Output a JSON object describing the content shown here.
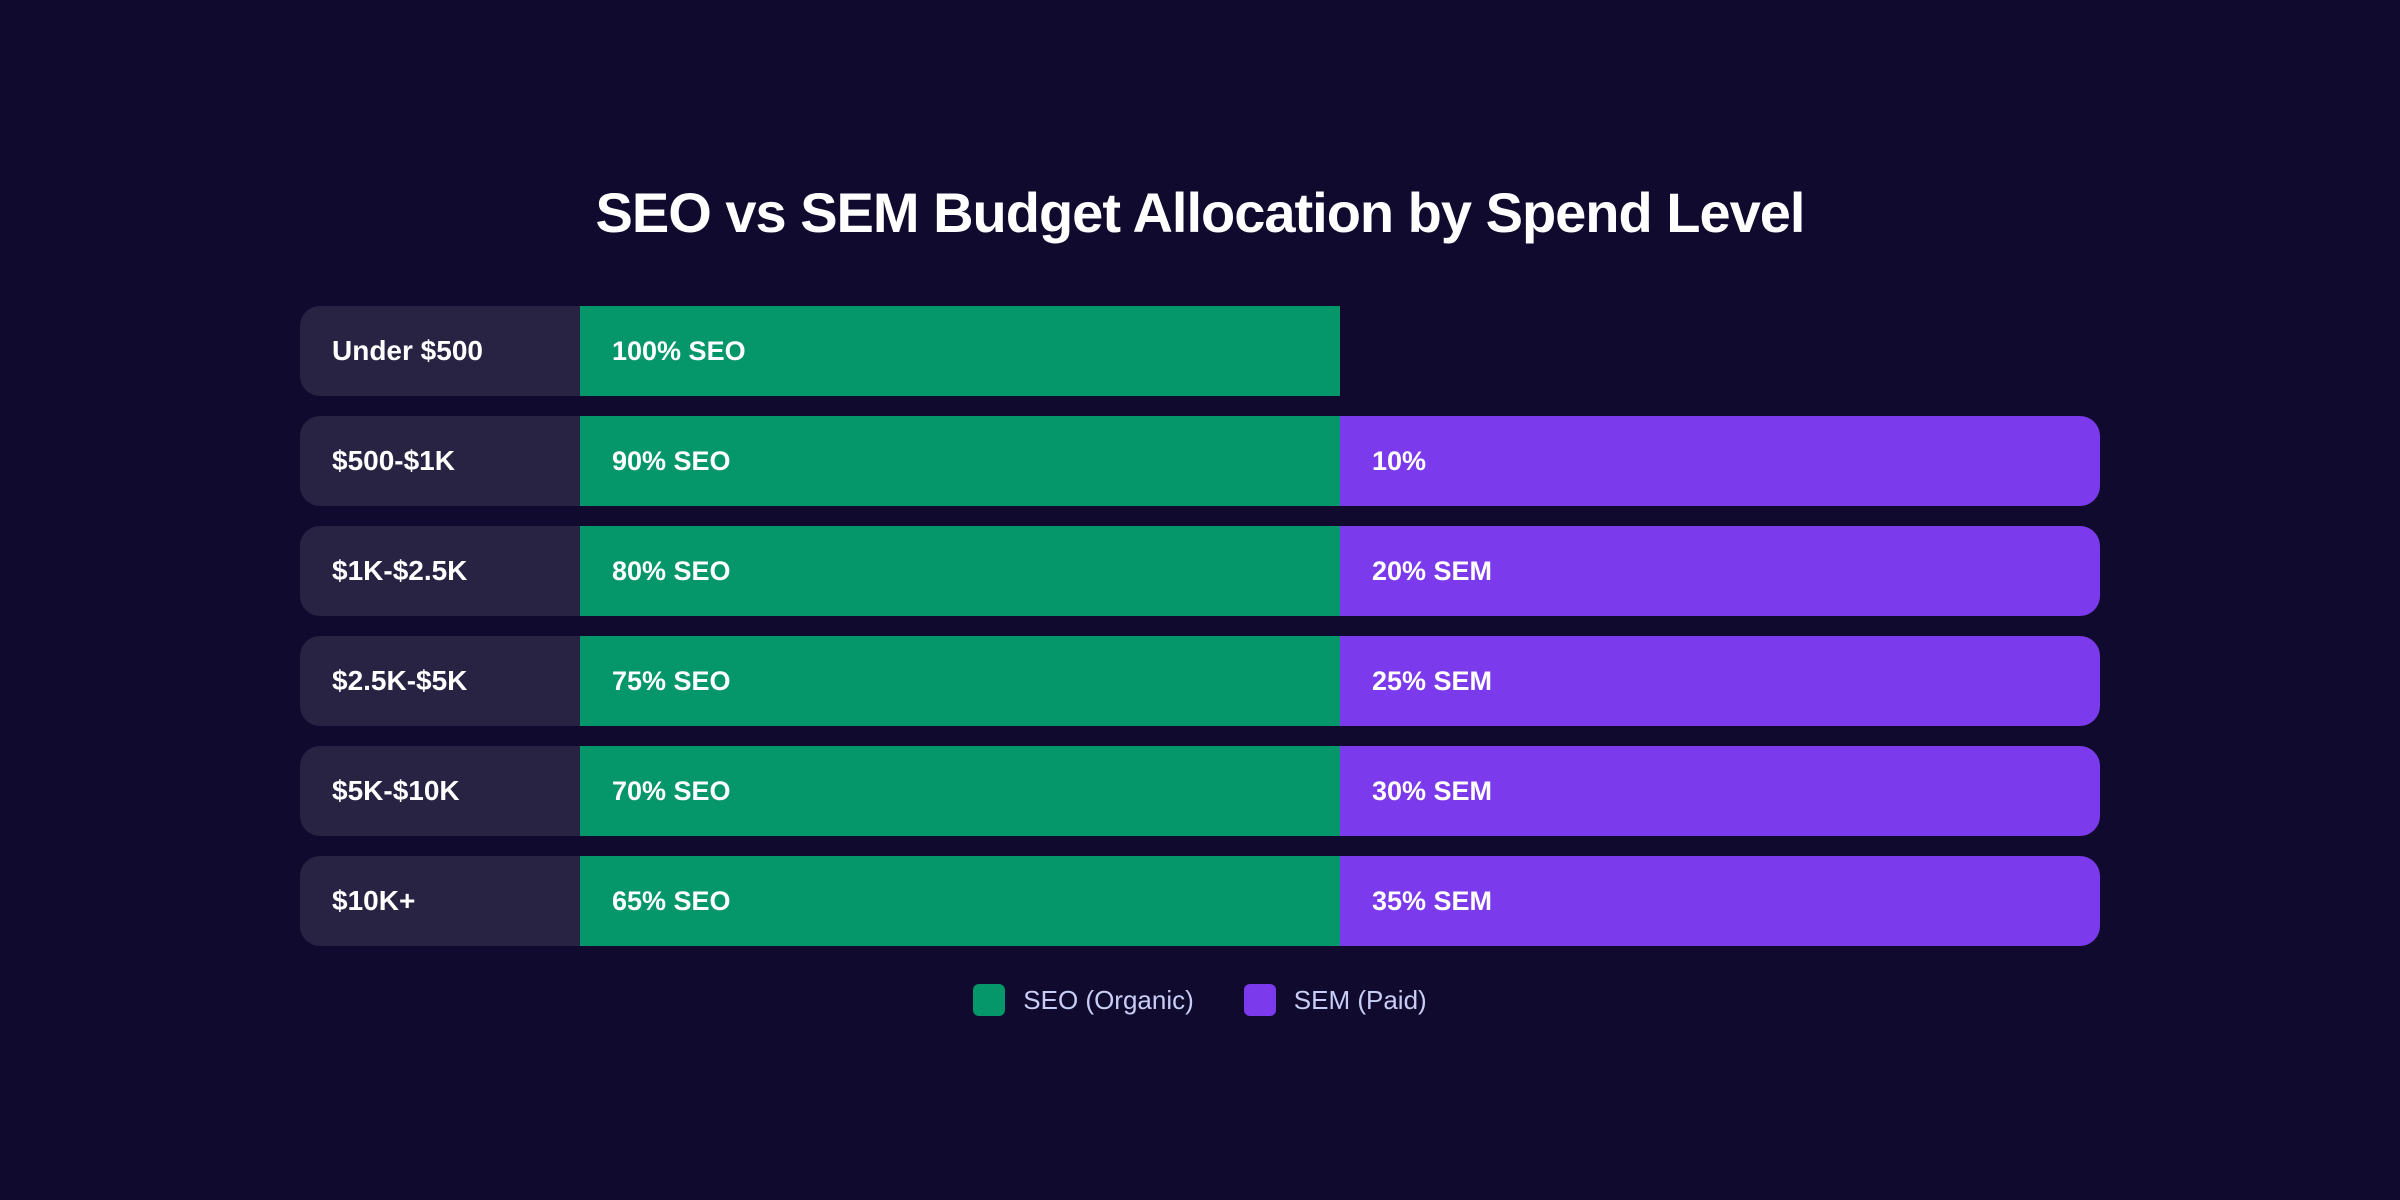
{
  "chart_data": {
    "type": "bar",
    "title": "SEO vs SEM Budget Allocation by Spend Level",
    "categories": [
      "Under $500",
      "$500-$1K",
      "$1K-$2.5K",
      "$2.5K-$5K",
      "$5K-$10K",
      "$10K+"
    ],
    "series": [
      {
        "name": "SEO (Organic)",
        "color": "#059669",
        "values": [
          100,
          90,
          80,
          75,
          70,
          65
        ],
        "labels": [
          "100% SEO",
          "90% SEO",
          "80% SEO",
          "75% SEO",
          "70% SEO",
          "65% SEO"
        ]
      },
      {
        "name": "SEM (Paid)",
        "color": "#7c3aed",
        "values": [
          0,
          10,
          20,
          25,
          30,
          35
        ],
        "labels": [
          "",
          "10%",
          "20% SEM",
          "25% SEM",
          "30% SEM",
          "35% SEM"
        ]
      }
    ],
    "legend": "bottom-center",
    "grid": false
  }
}
